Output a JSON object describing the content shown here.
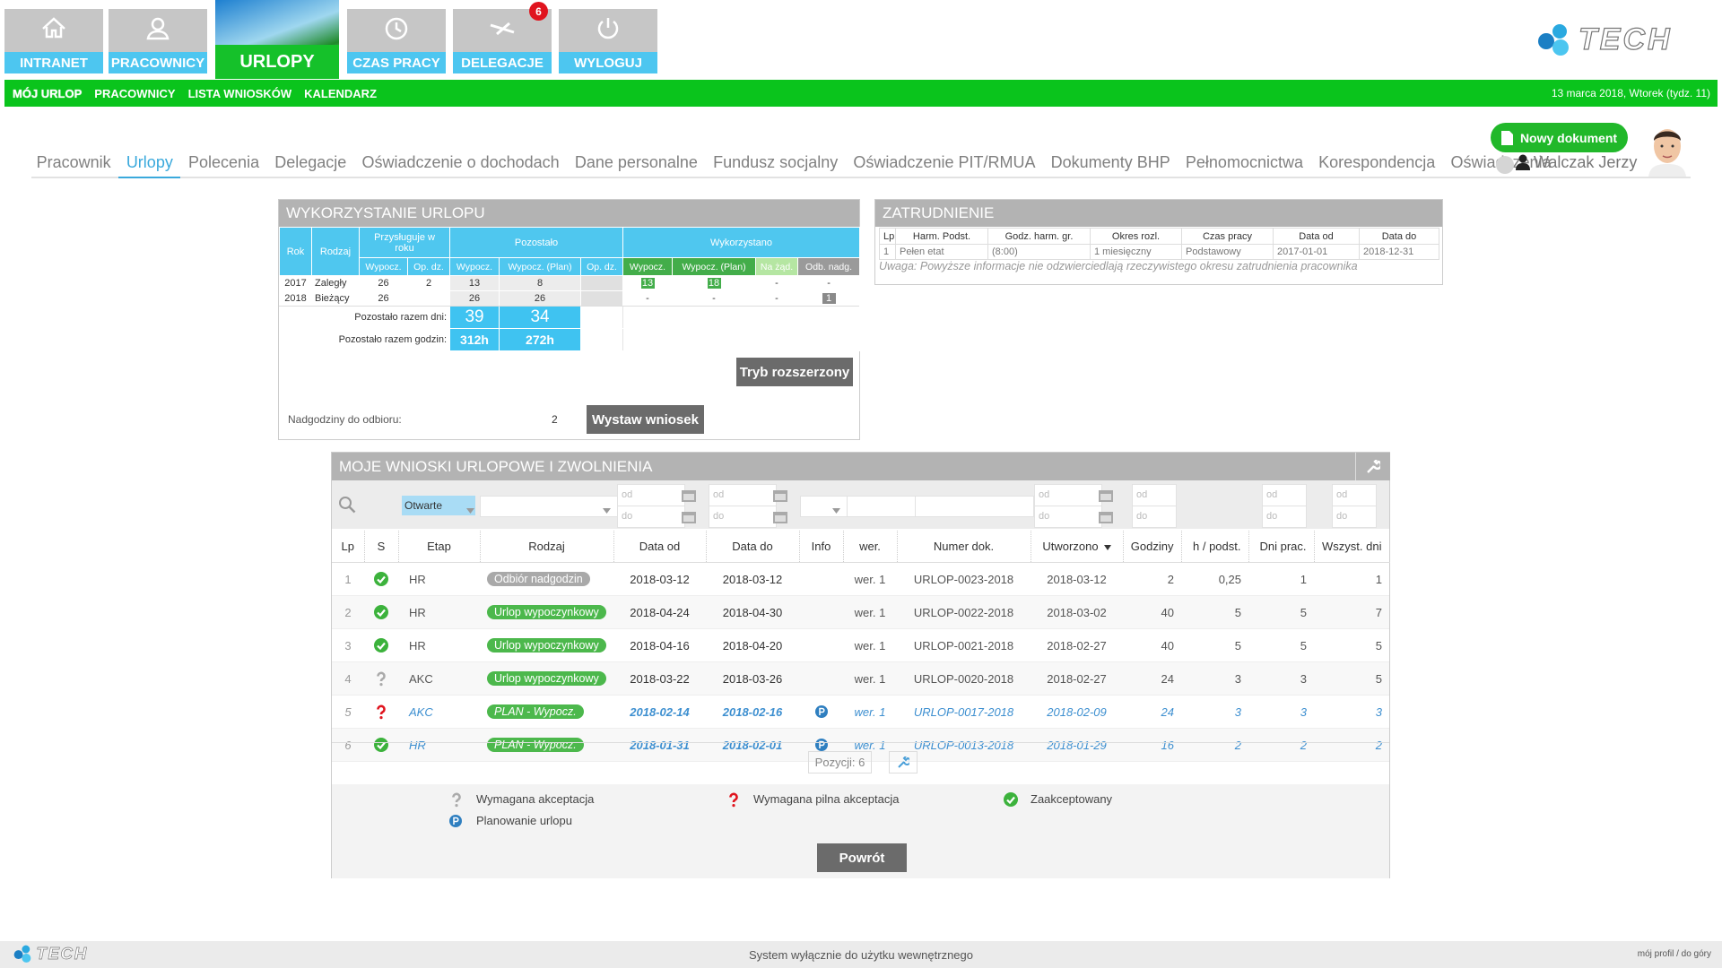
{
  "nav": {
    "tabs": [
      "INTRANET",
      "PRACOWNICY",
      "URLOPY",
      "CZAS PRACY",
      "DELEGACJE",
      "WYLOGUJ"
    ],
    "badge": "6",
    "logo": "TECH"
  },
  "subnav": {
    "items": [
      "MÓJ URLOP",
      "PRACOWNICY",
      "LISTA WNIOSKÓW",
      "KALENDARZ"
    ],
    "date": "13 marca 2018, Wtorek (tydz. 11)"
  },
  "tabs": {
    "items": [
      "Pracownik",
      "Urlopy",
      "Polecenia",
      "Delegacje",
      "Oświadczenie o dochodach",
      "Dane personalne",
      "Fundusz socjalny",
      "Oświadczenie PIT/RMUA",
      "Dokumenty BHP",
      "Pełnomocnictwa",
      "Korespondencja",
      "Oświadczenia"
    ],
    "user": "Walczak Jerzy",
    "new_document": "Nowy dokument"
  },
  "leave": {
    "title": "WYKORZYSTANIE URLOPU",
    "head": {
      "year": "Rok",
      "kind": "Rodzaj",
      "entitled": "Przysługuje w roku",
      "remaining": "Pozostało",
      "used": "Wykorzystano"
    },
    "subhead": [
      "Wypocz.",
      "Op. dz.",
      "Wypocz.",
      "Wypocz. (Plan)",
      "Op. dz.",
      "Wypocz.",
      "Wypocz. (Plan)",
      "Na żąd.",
      "Odb. nadg."
    ],
    "rows": [
      [
        "2017",
        "Zaległy",
        26,
        2,
        13,
        8,
        null,
        13,
        18,
        "-",
        "-"
      ],
      [
        "2018",
        "Bieżący",
        26,
        null,
        26,
        26,
        null,
        "-",
        "-",
        "-",
        1
      ]
    ],
    "totals": [
      {
        "label": "Pozostało razem dni:",
        "values": [
          39,
          34
        ]
      },
      {
        "label": "Pozostało razem godzin:",
        "values": [
          "312h",
          "272h"
        ]
      }
    ],
    "extended_button": "Tryb rozszerzony",
    "overtime_label": "Nadgodziny do odbioru:",
    "overtime": 2,
    "submit": "Wystaw wniosek"
  },
  "employment": {
    "title": "ZATRUDNIENIE",
    "headers": [
      "Lp",
      "Harm. Podst.",
      "Godz. harm. gr.",
      "Okres rozl.",
      "Czas pracy",
      "Data od",
      "Data do"
    ],
    "rows": [
      [
        "1",
        "Pełen etat",
        "(8:00)",
        "1 miesięczny",
        "Podstawowy",
        "2017-01-01",
        "2018-12-31"
      ]
    ],
    "note": "Uwaga: Powyższe informacje nie odzwierciedlają rzeczywistego okresu zatrudnienia pracownika"
  },
  "requests": {
    "title": "MOJE WNIOSKI URLOPOWE I ZWOLNIENIA",
    "filter": {
      "status": "Otwarte",
      "from": "od",
      "to": "do"
    },
    "headers": [
      "Lp",
      "S",
      "Etap",
      "Rodzaj",
      "Data od",
      "Data do",
      "Info",
      "wer.",
      "Numer dok.",
      "Utworzono",
      "Godziny",
      "h / podst.",
      "Dni prac.",
      "Wszyst. dni"
    ],
    "rows": [
      {
        "lp": 1,
        "status": "ok",
        "stage": "HR",
        "kind": "Odbiór nadgodzin",
        "kind_color": "#a9a9a9",
        "date_from": "2018-03-12",
        "date_to": "2018-03-12",
        "version": "wer. 1",
        "number": "URLOP-0023-2018",
        "created": "2018-03-12",
        "hours": 2,
        "h_base": "0,25",
        "work_days": 1,
        "all_days": 1
      },
      {
        "lp": 2,
        "status": "ok",
        "stage": "HR",
        "kind": "Urlop wypoczynkowy",
        "kind_color": "#4cb84c",
        "date_from": "2018-04-24",
        "date_to": "2018-04-30",
        "version": "wer. 1",
        "number": "URLOP-0022-2018",
        "created": "2018-03-02",
        "hours": 40,
        "h_base": 5,
        "work_days": 5,
        "all_days": 7
      },
      {
        "lp": 3,
        "status": "ok",
        "stage": "HR",
        "kind": "Urlop wypoczynkowy",
        "kind_color": "#4cb84c",
        "date_from": "2018-04-16",
        "date_to": "2018-04-20",
        "version": "wer. 1",
        "number": "URLOP-0021-2018",
        "created": "2018-02-27",
        "hours": 40,
        "h_base": 5,
        "work_days": 5,
        "all_days": 5
      },
      {
        "lp": 4,
        "status": "pending",
        "stage": "AKC",
        "kind": "Urlop wypoczynkowy",
        "kind_color": "#4cb84c",
        "date_from": "2018-03-22",
        "date_to": "2018-03-26",
        "version": "wer. 1",
        "number": "URLOP-0020-2018",
        "created": "2018-02-27",
        "hours": 24,
        "h_base": 3,
        "work_days": 3,
        "all_days": 5
      },
      {
        "lp": 5,
        "status": "urgent",
        "stage": "AKC",
        "kind": "PLAN - Wypocz.",
        "kind_color": "#4cb84c",
        "date_from": "2018-02-14",
        "date_to": "2018-02-16",
        "planned": true,
        "version": "wer. 1",
        "number": "URLOP-0017-2018",
        "created": "2018-02-09",
        "hours": 24,
        "h_base": 3,
        "work_days": 3,
        "all_days": 3
      },
      {
        "lp": 6,
        "status": "ok",
        "stage": "HR",
        "kind": "PLAN - Wypocz.",
        "kind_color": "#4cb84c",
        "date_from": "2018-01-31",
        "date_to": "2018-02-01",
        "planned": true,
        "version": "wer. 1",
        "number": "URLOP-0013-2018",
        "created": "2018-01-29",
        "hours": 16,
        "h_base": 2,
        "work_days": 2,
        "all_days": 2
      }
    ],
    "pager": "Pozycji: 6",
    "legend": [
      {
        "icon": "pending",
        "text": "Wymagana akceptacja"
      },
      {
        "icon": "urgent",
        "text": "Wymagana pilna akceptacja"
      },
      {
        "icon": "ok",
        "text": "Zaakceptowany"
      },
      {
        "icon": "planned",
        "text": "Planowanie urlopu"
      }
    ],
    "back": "Powrót"
  },
  "footer": {
    "text": "System wyłącznie do użytku wewnętrznego",
    "links": "mój profil / do góry"
  }
}
